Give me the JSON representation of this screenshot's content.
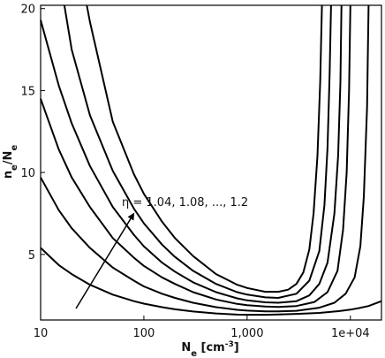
{
  "chart_data": {
    "type": "line",
    "title": "",
    "xscale": "log",
    "xlim": [
      10,
      20000
    ],
    "ylim": [
      1,
      20.2
    ],
    "xticks": [
      {
        "value": 10,
        "label": "10"
      },
      {
        "value": 100,
        "label": "100"
      },
      {
        "value": 1000,
        "label": "1,000"
      },
      {
        "value": 10000,
        "label": "1e+04"
      }
    ],
    "yticks": [
      {
        "value": 5,
        "label": "5"
      },
      {
        "value": 10,
        "label": "10"
      },
      {
        "value": 15,
        "label": "15"
      },
      {
        "value": 20,
        "label": "20"
      }
    ],
    "xlabel": {
      "main": "N",
      "sub": "e",
      "unit_open": " [cm",
      "sup": "-3",
      "unit_close": "]"
    },
    "ylabel": {
      "n": "n",
      "n_sub": "e",
      "slash": "/N",
      "N_sub": "e"
    },
    "grid": false,
    "annotation": {
      "text": "η = 1.04, 1.08, ..., 1.2",
      "arrow_from": [
        22,
        1.7
      ],
      "arrow_to": [
        80,
        7.5
      ]
    },
    "series": [
      {
        "x": [
          10,
          15,
          20,
          30,
          50,
          80,
          100,
          150,
          200,
          300,
          500,
          800,
          1000,
          1500,
          2000,
          3000,
          5000,
          8000,
          10000,
          12000,
          15000,
          20000
        ],
        "y": [
          5.4,
          4.35,
          3.8,
          3.15,
          2.55,
          2.15,
          2.0,
          1.78,
          1.65,
          1.52,
          1.4,
          1.33,
          1.32,
          1.32,
          1.34,
          1.37,
          1.43,
          1.55,
          1.63,
          1.72,
          1.85,
          2.15
        ]
      },
      {
        "x": [
          10,
          15,
          20,
          30,
          50,
          80,
          100,
          150,
          200,
          300,
          500,
          800,
          1000,
          1500,
          2000,
          3000,
          5000,
          7000,
          9000,
          11000,
          12500,
          13500,
          14500,
          15000
        ],
        "y": [
          9.7,
          7.7,
          6.6,
          5.4,
          4.2,
          3.4,
          3.05,
          2.6,
          2.35,
          2.05,
          1.78,
          1.62,
          1.57,
          1.53,
          1.53,
          1.56,
          1.75,
          2.05,
          2.6,
          3.6,
          5.5,
          8.5,
          14,
          20.2
        ]
      },
      {
        "x": [
          10,
          15,
          20,
          30,
          50,
          80,
          100,
          150,
          200,
          300,
          500,
          800,
          1000,
          1500,
          2000,
          3000,
          4500,
          6000,
          7500,
          8500,
          9200,
          9700,
          10000
        ],
        "y": [
          14.5,
          11.4,
          9.7,
          7.9,
          6.0,
          4.8,
          4.3,
          3.6,
          3.2,
          2.7,
          2.25,
          1.98,
          1.9,
          1.82,
          1.8,
          1.85,
          2.1,
          2.7,
          4.0,
          6.5,
          10,
          15,
          20.2
        ]
      },
      {
        "x": [
          10,
          15,
          20,
          30,
          50,
          80,
          100,
          150,
          200,
          300,
          500,
          800,
          1000,
          1500,
          2000,
          3000,
          4000,
          5000,
          6000,
          7000,
          7600,
          8000,
          8200
        ],
        "y": [
          19.3,
          15.3,
          13.0,
          10.4,
          7.9,
          6.2,
          5.5,
          4.5,
          3.95,
          3.3,
          2.7,
          2.32,
          2.2,
          2.08,
          2.05,
          2.15,
          2.5,
          3.2,
          4.5,
          7.5,
          11,
          15.5,
          20.2
        ]
      },
      {
        "x": [
          17,
          20,
          30,
          50,
          80,
          100,
          150,
          200,
          300,
          500,
          800,
          1000,
          1500,
          2000,
          3000,
          4000,
          5000,
          5600,
          6000,
          6300,
          6500
        ],
        "y": [
          20.2,
          17.5,
          13.5,
          10.1,
          7.8,
          6.9,
          5.6,
          4.85,
          4.0,
          3.2,
          2.7,
          2.55,
          2.38,
          2.35,
          2.6,
          3.4,
          5.2,
          8,
          11.5,
          16,
          20.2
        ]
      },
      {
        "x": [
          28,
          30,
          50,
          80,
          100,
          150,
          200,
          300,
          500,
          800,
          1000,
          1500,
          2000,
          2500,
          3000,
          3500,
          4000,
          4400,
          4800,
          5100,
          5300
        ],
        "y": [
          20.2,
          19.2,
          13.1,
          9.9,
          8.7,
          7.0,
          6.0,
          4.9,
          3.8,
          3.15,
          2.95,
          2.72,
          2.72,
          2.85,
          3.2,
          3.9,
          5.3,
          7.5,
          11,
          15.5,
          20.2
        ]
      }
    ]
  }
}
